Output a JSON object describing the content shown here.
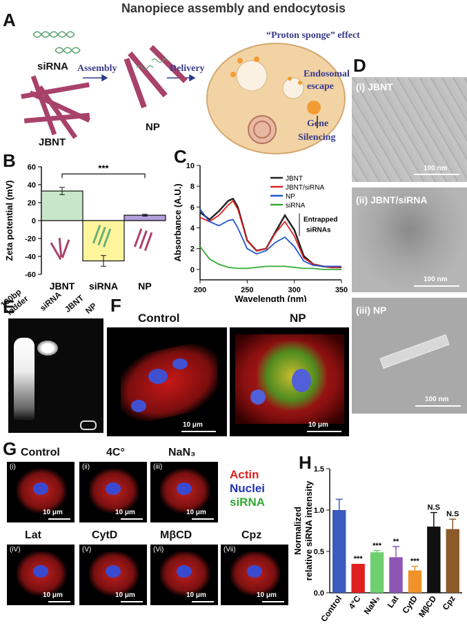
{
  "title": "Nanopiece assembly and endocytosis",
  "panel_a": {
    "label": "A",
    "sirna": "siRNA",
    "jbnt": "JBNT",
    "assembly": "Assembly",
    "np": "NP",
    "delivery": "Delivery",
    "proton": "“Proton sponge” effect",
    "endo1": "Endosomal",
    "endo2": "escape",
    "gene1": "Gene",
    "gene2": "Silencing"
  },
  "panel_b": {
    "label": "B",
    "ylabel": "Zeta potential (mV)",
    "sig": "***",
    "colors": [
      "#c8e6c9",
      "#fff59d",
      "#b39ddb"
    ]
  },
  "panel_c": {
    "label": "C",
    "ylabel": "Absorbance (A.U.)",
    "xlabel": "Wavelength (nm)",
    "annot1": "Entrapped",
    "annot2": "siRNAs"
  },
  "panel_d": {
    "label": "D",
    "i": "(i) JBNT",
    "ii": "(ii) JBNT/siRNA",
    "iii": "(iii) NP",
    "scale": "100 nm"
  },
  "panel_e": {
    "label": "E",
    "lanes": [
      "100bp ladder",
      "siRNA",
      "JBNT",
      "NP"
    ]
  },
  "panel_f": {
    "label": "F",
    "control": "Control",
    "np": "NP",
    "scale": "10 μm"
  },
  "panel_g": {
    "label": "G",
    "titles": [
      "Control",
      "4C°",
      "NaN₃",
      "Lat",
      "CytD",
      "MβCD",
      "Cpz"
    ],
    "roman": [
      "(i)",
      "(ii)",
      "(iii)",
      "(iV)",
      "(V)",
      "(Vi)",
      "(Vii)"
    ],
    "scale": "10 μm",
    "legend": [
      {
        "text": "Actin",
        "color": "#e02020"
      },
      {
        "text": "Nuclei",
        "color": "#2233bb"
      },
      {
        "text": "siRNA",
        "color": "#33aa33"
      }
    ]
  },
  "panel_h": {
    "label": "H",
    "ylabel1": "Normalized",
    "ylabel2": "relative siRNA intensity"
  },
  "chart_data": [
    {
      "type": "bar",
      "id": "B",
      "categories": [
        "JBNT",
        "siRNA",
        "NP"
      ],
      "values": [
        33,
        -45,
        6
      ],
      "errors": [
        4,
        6,
        1
      ],
      "ylabel": "Zeta potential (mV)",
      "ylim": [
        -60,
        60
      ],
      "yticks": [
        -60,
        -40,
        -20,
        0,
        20,
        40,
        60
      ],
      "annotation": "***"
    },
    {
      "type": "line",
      "id": "C",
      "xlabel": "Wavelength (nm)",
      "ylabel": "Absorbance (A.U.)",
      "xlim": [
        200,
        350
      ],
      "ylim": [
        -1,
        10
      ],
      "xticks": [
        200,
        250,
        300,
        350
      ],
      "yticks": [
        0,
        2,
        4,
        6,
        8,
        10
      ],
      "series": [
        {
          "name": "JBNT",
          "color": "#222222",
          "x": [
            200,
            210,
            220,
            230,
            235,
            240,
            250,
            260,
            270,
            280,
            290,
            300,
            310,
            320,
            330,
            340,
            350
          ],
          "y": [
            5.5,
            4.8,
            5.6,
            6.6,
            6.8,
            6.0,
            2.8,
            1.8,
            2.0,
            3.6,
            5.2,
            3.8,
            1.3,
            0.5,
            0.3,
            0.2,
            0.2
          ]
        },
        {
          "name": "JBNT/siRNA",
          "color": "#dd2222",
          "x": [
            200,
            210,
            220,
            230,
            235,
            240,
            250,
            260,
            270,
            280,
            290,
            300,
            310,
            320,
            330,
            340,
            350
          ],
          "y": [
            5.0,
            4.6,
            5.2,
            6.2,
            6.6,
            5.8,
            2.8,
            1.8,
            2.0,
            3.5,
            4.6,
            3.2,
            1.1,
            0.5,
            0.3,
            0.2,
            0.2
          ]
        },
        {
          "name": "NP",
          "color": "#2255cc",
          "x": [
            200,
            210,
            220,
            230,
            235,
            240,
            250,
            260,
            270,
            280,
            290,
            300,
            310,
            320,
            330,
            340,
            350
          ],
          "y": [
            5.8,
            4.6,
            4.2,
            4.7,
            4.8,
            4.0,
            2.0,
            1.5,
            1.8,
            2.6,
            3.1,
            2.2,
            0.8,
            0.4,
            0.3,
            0.3,
            0.3
          ]
        },
        {
          "name": "siRNA",
          "color": "#33aa33",
          "x": [
            200,
            210,
            220,
            230,
            240,
            250,
            260,
            270,
            280,
            290,
            300,
            310,
            320,
            330,
            340,
            350
          ],
          "y": [
            2.2,
            1.0,
            0.5,
            0.2,
            0.1,
            0.1,
            0.2,
            0.3,
            0.3,
            0.3,
            0.2,
            0.1,
            0.1,
            0.0,
            0.0,
            0.0
          ]
        }
      ],
      "annotation": "Entrapped siRNAs"
    },
    {
      "type": "bar",
      "id": "H",
      "categories": [
        "Control",
        "4°C",
        "NaN₃",
        "Lat",
        "CytD",
        "MβCD",
        "Cpz"
      ],
      "values": [
        1.0,
        0.35,
        0.49,
        0.43,
        0.27,
        0.8,
        0.77
      ],
      "errors": [
        0.13,
        0.0,
        0.02,
        0.13,
        0.05,
        0.17,
        0.12
      ],
      "colors": [
        "#3a5bbf",
        "#e02020",
        "#6fcf6f",
        "#8e55b5",
        "#f0922a",
        "#111111",
        "#8b5a2b"
      ],
      "significance": [
        "",
        "***",
        "***",
        "**",
        "***",
        "N.S",
        "N.S"
      ],
      "ylabel": "Normalized relative siRNA intensity",
      "ylim": [
        0,
        1.5
      ],
      "yticks": [
        0.0,
        0.5,
        1.0,
        1.5
      ]
    }
  ]
}
